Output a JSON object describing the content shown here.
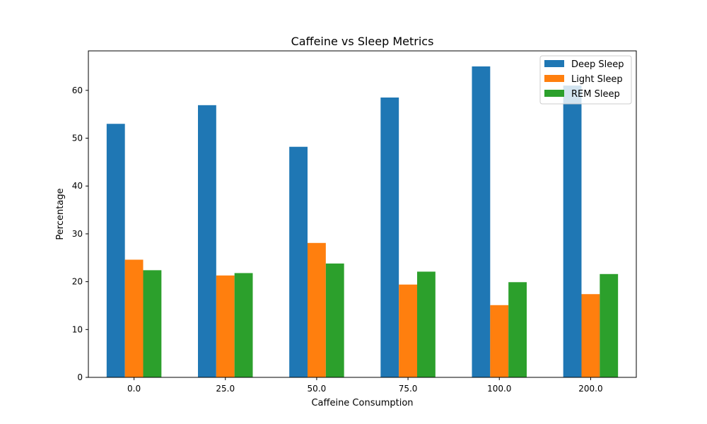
{
  "chart_data": {
    "type": "bar",
    "title": "Caffeine vs Sleep Metrics",
    "xlabel": "Caffeine Consumption",
    "ylabel": "Percentage",
    "categories": [
      "0.0",
      "25.0",
      "50.0",
      "75.0",
      "100.0",
      "200.0"
    ],
    "series": [
      {
        "name": "Deep Sleep",
        "color": "#1f77b4",
        "values": [
          53.0,
          56.9,
          48.2,
          58.5,
          65.0,
          61.0
        ]
      },
      {
        "name": "Light Sleep",
        "color": "#ff7f0e",
        "values": [
          24.6,
          21.3,
          28.1,
          19.4,
          15.1,
          17.4
        ]
      },
      {
        "name": "REM Sleep",
        "color": "#2ca02c",
        "values": [
          22.4,
          21.8,
          23.8,
          22.1,
          19.9,
          21.6
        ]
      }
    ],
    "yticks": [
      "0",
      "10",
      "20",
      "30",
      "40",
      "50",
      "60"
    ],
    "ylim": [
      0,
      68.25
    ],
    "legend": "top-right",
    "grid": false
  }
}
